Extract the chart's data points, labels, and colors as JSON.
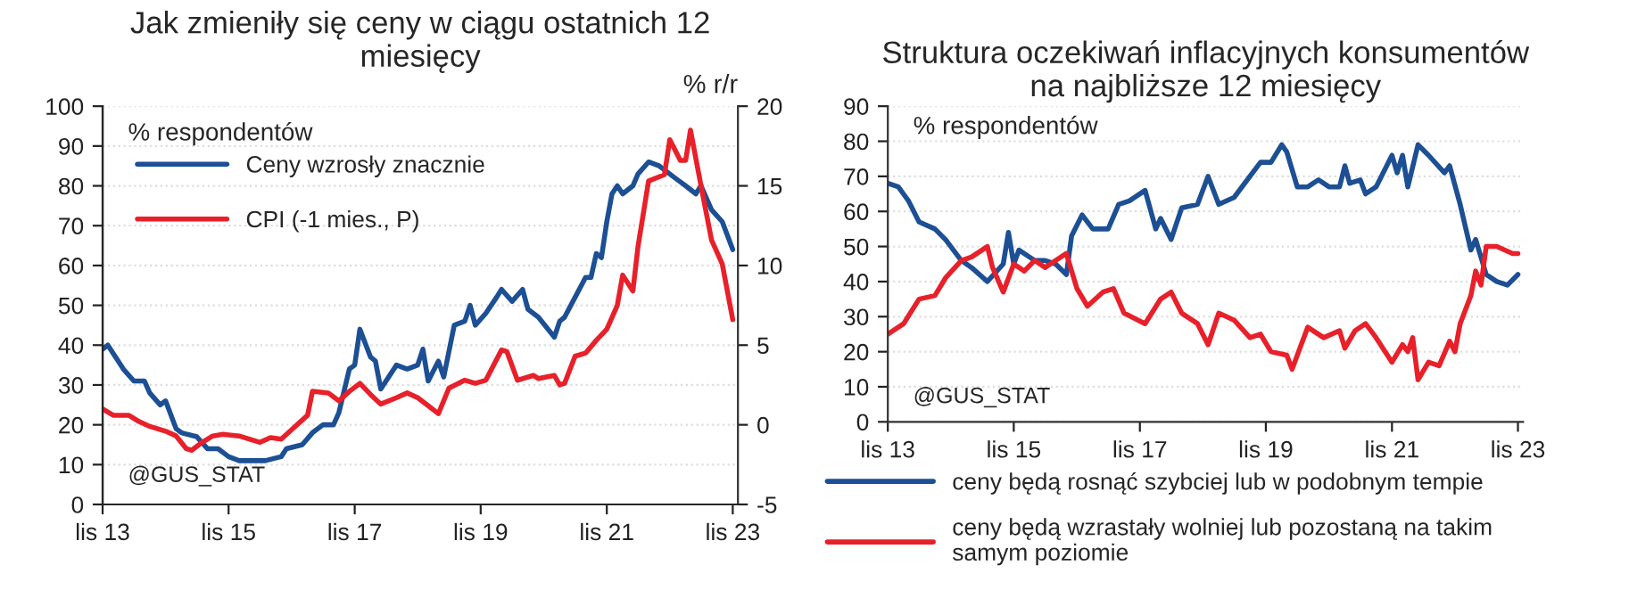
{
  "chart_data": [
    {
      "type": "line",
      "title": "Jak zmieniły się ceny w ciągu ostatnich 12 miesięcy",
      "ylabel": "% respondentów",
      "y2label": "% r/r",
      "legend": "top left",
      "grid": "y",
      "xlim": [
        "2013-11",
        "2023-12"
      ],
      "ylim": [
        0,
        100
      ],
      "yticks": [
        0,
        10,
        20,
        30,
        40,
        50,
        60,
        70,
        80,
        90,
        100
      ],
      "y2lim": [
        -5,
        20
      ],
      "y2ticks": [
        -5,
        0,
        5,
        10,
        15,
        20
      ],
      "xticks": [
        {
          "value": "2013-11",
          "label": "lis 13"
        },
        {
          "value": "2015-11",
          "label": "lis 15"
        },
        {
          "value": "2017-11",
          "label": "lis 17"
        },
        {
          "value": "2019-11",
          "label": "lis 19"
        },
        {
          "value": "2021-11",
          "label": "lis 21"
        },
        {
          "value": "2023-11",
          "label": "lis 23"
        }
      ],
      "annotations": [
        "@GUS_STAT"
      ],
      "series": [
        {
          "name": "Ceny wzrosły znacznie",
          "color": "#1c4f94",
          "x": [
            "2013-11",
            "2013-12",
            "2014-03",
            "2014-05",
            "2014-07",
            "2014-08",
            "2014-10",
            "2014-11",
            "2015-01",
            "2015-02",
            "2015-05",
            "2015-07",
            "2015-09",
            "2015-11",
            "2016-01",
            "2016-03",
            "2016-06",
            "2016-09",
            "2016-10",
            "2017-01",
            "2017-03",
            "2017-05",
            "2017-07",
            "2017-08",
            "2017-10",
            "2017-11",
            "2017-12",
            "2018-02",
            "2018-03",
            "2018-04",
            "2018-07",
            "2018-09",
            "2018-11",
            "2018-12",
            "2019-01",
            "2019-03",
            "2019-04",
            "2019-06",
            "2019-08",
            "2019-09",
            "2019-10",
            "2019-12",
            "2020-02",
            "2020-03",
            "2020-05",
            "2020-07",
            "2020-08",
            "2020-10",
            "2021-01",
            "2021-02",
            "2021-03",
            "2021-05",
            "2021-07",
            "2021-08",
            "2021-09",
            "2021-10",
            "2021-11",
            "2021-12",
            "2022-01",
            "2022-02",
            "2022-04",
            "2022-05",
            "2022-07",
            "2022-09",
            "2022-10",
            "2022-12",
            "2023-02",
            "2023-04",
            "2023-05",
            "2023-07",
            "2023-09",
            "2023-11"
          ],
          "values": [
            39,
            40,
            34,
            31,
            31,
            28,
            25,
            26,
            19,
            18,
            17,
            14,
            14,
            12,
            11,
            11,
            11,
            12,
            14,
            15,
            18,
            20,
            20,
            23,
            34,
            35,
            44,
            37,
            36,
            29,
            35,
            34,
            35,
            39,
            31,
            36,
            32,
            45,
            46,
            50,
            45,
            48,
            52,
            54,
            51,
            54,
            49,
            47,
            42,
            46,
            47,
            52,
            57,
            57,
            63,
            62,
            71,
            78,
            80,
            78,
            80,
            83,
            86,
            85,
            84,
            82,
            80,
            78,
            80,
            74,
            71,
            64
          ]
        },
        {
          "name": "CPI (-1 mies., P)",
          "color": "#e8202a",
          "axis": "y2",
          "x": [
            "2013-11",
            "2014-01",
            "2014-04",
            "2014-06",
            "2014-08",
            "2014-11",
            "2015-01",
            "2015-03",
            "2015-04",
            "2015-06",
            "2015-08",
            "2015-10",
            "2016-01",
            "2016-05",
            "2016-07",
            "2016-09",
            "2016-11",
            "2017-02",
            "2017-03",
            "2017-06",
            "2017-08",
            "2017-10",
            "2017-12",
            "2018-02",
            "2018-04",
            "2018-07",
            "2018-09",
            "2018-11",
            "2019-01",
            "2019-03",
            "2019-05",
            "2019-08",
            "2019-10",
            "2019-12",
            "2020-03",
            "2020-04",
            "2020-06",
            "2020-09",
            "2020-10",
            "2021-01",
            "2021-02",
            "2021-03",
            "2021-05",
            "2021-07",
            "2021-09",
            "2021-11",
            "2022-01",
            "2022-02",
            "2022-04",
            "2022-05",
            "2022-07",
            "2022-10",
            "2022-11",
            "2023-01",
            "2023-02",
            "2023-03",
            "2023-05",
            "2023-07",
            "2023-09",
            "2023-11"
          ],
          "values": [
            1.0,
            0.6,
            0.6,
            0.2,
            -0.1,
            -0.4,
            -0.7,
            -1.5,
            -1.6,
            -1.1,
            -0.7,
            -0.6,
            -0.7,
            -1.1,
            -0.8,
            -0.9,
            -0.3,
            0.6,
            2.1,
            2.0,
            1.5,
            2.1,
            2.6,
            1.9,
            1.3,
            1.7,
            2.0,
            1.7,
            1.2,
            0.7,
            2.3,
            2.8,
            2.6,
            2.8,
            4.7,
            4.6,
            2.8,
            3.1,
            2.9,
            3.1,
            2.5,
            2.6,
            4.3,
            4.5,
            5.3,
            6.0,
            7.5,
            9.4,
            8.4,
            11.2,
            15.3,
            15.7,
            17.9,
            16.6,
            16.6,
            18.5,
            15.0,
            11.6,
            10.1,
            6.6
          ]
        }
      ]
    },
    {
      "type": "line",
      "title": "Struktura oczekiwań inflacyjnych konsumentów na najbliższe 12 miesięcy",
      "ylabel": "% respondentów",
      "legend": "bottom",
      "grid": "y",
      "xlim": [
        "2013-11",
        "2023-12"
      ],
      "ylim": [
        0,
        90
      ],
      "yticks": [
        0,
        10,
        20,
        30,
        40,
        50,
        60,
        70,
        80,
        90
      ],
      "xticks": [
        {
          "value": "2013-11",
          "label": "lis 13"
        },
        {
          "value": "2015-11",
          "label": "lis 15"
        },
        {
          "value": "2017-11",
          "label": "lis 17"
        },
        {
          "value": "2019-11",
          "label": "lis 19"
        },
        {
          "value": "2021-11",
          "label": "lis 21"
        },
        {
          "value": "2023-11",
          "label": "lis 23"
        }
      ],
      "annotations": [
        "@GUS_STAT"
      ],
      "series": [
        {
          "name": "ceny będą rosnąć szybciej lub w podobnym tempie",
          "color": "#1c4f94",
          "x": [
            "2013-11",
            "2014-01",
            "2014-03",
            "2014-05",
            "2014-08",
            "2014-10",
            "2015-01",
            "2015-03",
            "2015-06",
            "2015-09",
            "2015-10",
            "2015-11",
            "2015-12",
            "2016-03",
            "2016-05",
            "2016-07",
            "2016-09",
            "2016-10",
            "2016-12",
            "2017-02",
            "2017-05",
            "2017-07",
            "2017-09",
            "2017-12",
            "2018-02",
            "2018-03",
            "2018-05",
            "2018-07",
            "2018-10",
            "2018-12",
            "2019-02",
            "2019-05",
            "2019-07",
            "2019-10",
            "2019-12",
            "2020-02",
            "2020-03",
            "2020-05",
            "2020-07",
            "2020-09",
            "2020-11",
            "2021-01",
            "2021-02",
            "2021-03",
            "2021-05",
            "2021-06",
            "2021-08",
            "2021-11",
            "2021-12",
            "2022-01",
            "2022-02",
            "2022-04",
            "2022-06",
            "2022-09",
            "2022-10",
            "2022-12",
            "2023-02",
            "2023-03",
            "2023-05",
            "2023-07",
            "2023-09",
            "2023-11"
          ],
          "values": [
            68,
            67,
            63,
            57,
            55,
            52,
            46,
            44,
            40,
            45,
            54,
            45,
            49,
            46,
            46,
            45,
            42,
            53,
            59,
            55,
            55,
            62,
            63,
            66,
            55,
            58,
            52,
            61,
            62,
            70,
            62,
            64,
            68,
            74,
            74,
            79,
            77,
            67,
            67,
            69,
            67,
            67,
            73,
            68,
            69,
            65,
            67,
            76,
            71,
            76,
            67,
            79,
            76,
            71,
            73,
            62,
            49,
            52,
            42,
            40,
            39,
            42
          ]
        },
        {
          "name": "ceny będą wzrastały wolniej lub pozostaną na takim samym poziomie",
          "color": "#e8202a",
          "x": [
            "2013-11",
            "2014-02",
            "2014-05",
            "2014-08",
            "2014-10",
            "2015-01",
            "2015-03",
            "2015-06",
            "2015-07",
            "2015-09",
            "2015-11",
            "2016-01",
            "2016-03",
            "2016-05",
            "2016-07",
            "2016-09",
            "2016-11",
            "2017-01",
            "2017-04",
            "2017-06",
            "2017-08",
            "2017-12",
            "2018-03",
            "2018-05",
            "2018-07",
            "2018-10",
            "2018-12",
            "2019-02",
            "2019-05",
            "2019-08",
            "2019-10",
            "2019-12",
            "2020-03",
            "2020-04",
            "2020-07",
            "2020-10",
            "2021-01",
            "2021-02",
            "2021-04",
            "2021-06",
            "2021-08",
            "2021-11",
            "2022-01",
            "2022-02",
            "2022-03",
            "2022-04",
            "2022-06",
            "2022-08",
            "2022-10",
            "2022-11",
            "2022-12",
            "2023-02",
            "2023-03",
            "2023-04",
            "2023-05",
            "2023-07",
            "2023-10",
            "2023-11"
          ],
          "values": [
            25,
            28,
            35,
            36,
            41,
            46,
            47,
            50,
            44,
            37,
            45,
            43,
            46,
            44,
            46,
            48,
            38,
            33,
            37,
            38,
            31,
            28,
            35,
            37,
            31,
            28,
            22,
            31,
            29,
            24,
            25,
            20,
            19,
            15,
            27,
            24,
            26,
            21,
            26,
            28,
            24,
            17,
            22,
            20,
            24,
            12,
            17,
            16,
            23,
            20,
            28,
            36,
            43,
            39,
            50,
            50,
            48,
            48
          ]
        }
      ]
    }
  ]
}
